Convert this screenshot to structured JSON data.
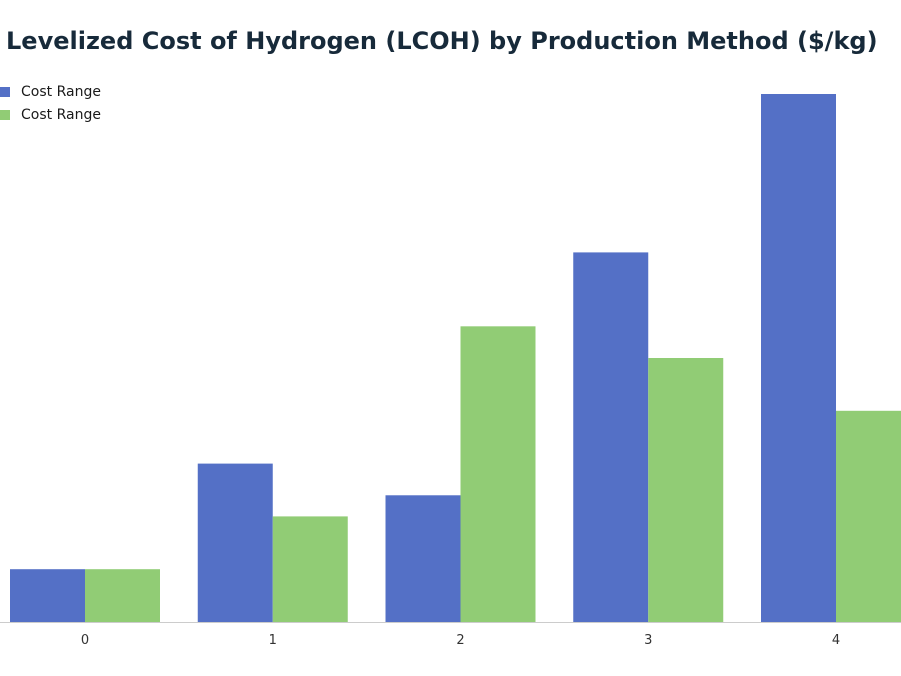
{
  "chart_data": {
    "type": "bar",
    "title": "Levelized Cost of Hydrogen (LCOH) by Production Method ($/kg)",
    "categories": [
      "0",
      "1",
      "2",
      "3",
      "4"
    ],
    "series": [
      {
        "name": "Cost Range",
        "color": "#5470c6",
        "values": [
          1.0,
          3.0,
          2.4,
          7.0,
          10.0
        ]
      },
      {
        "name": "Cost Range",
        "color": "#91cc75",
        "values": [
          1.0,
          2.0,
          5.6,
          5.0,
          4.0
        ]
      }
    ],
    "xlabel": "",
    "ylabel": "",
    "ylim": [
      0,
      10
    ],
    "grid": false,
    "legend_position": "top-left"
  }
}
